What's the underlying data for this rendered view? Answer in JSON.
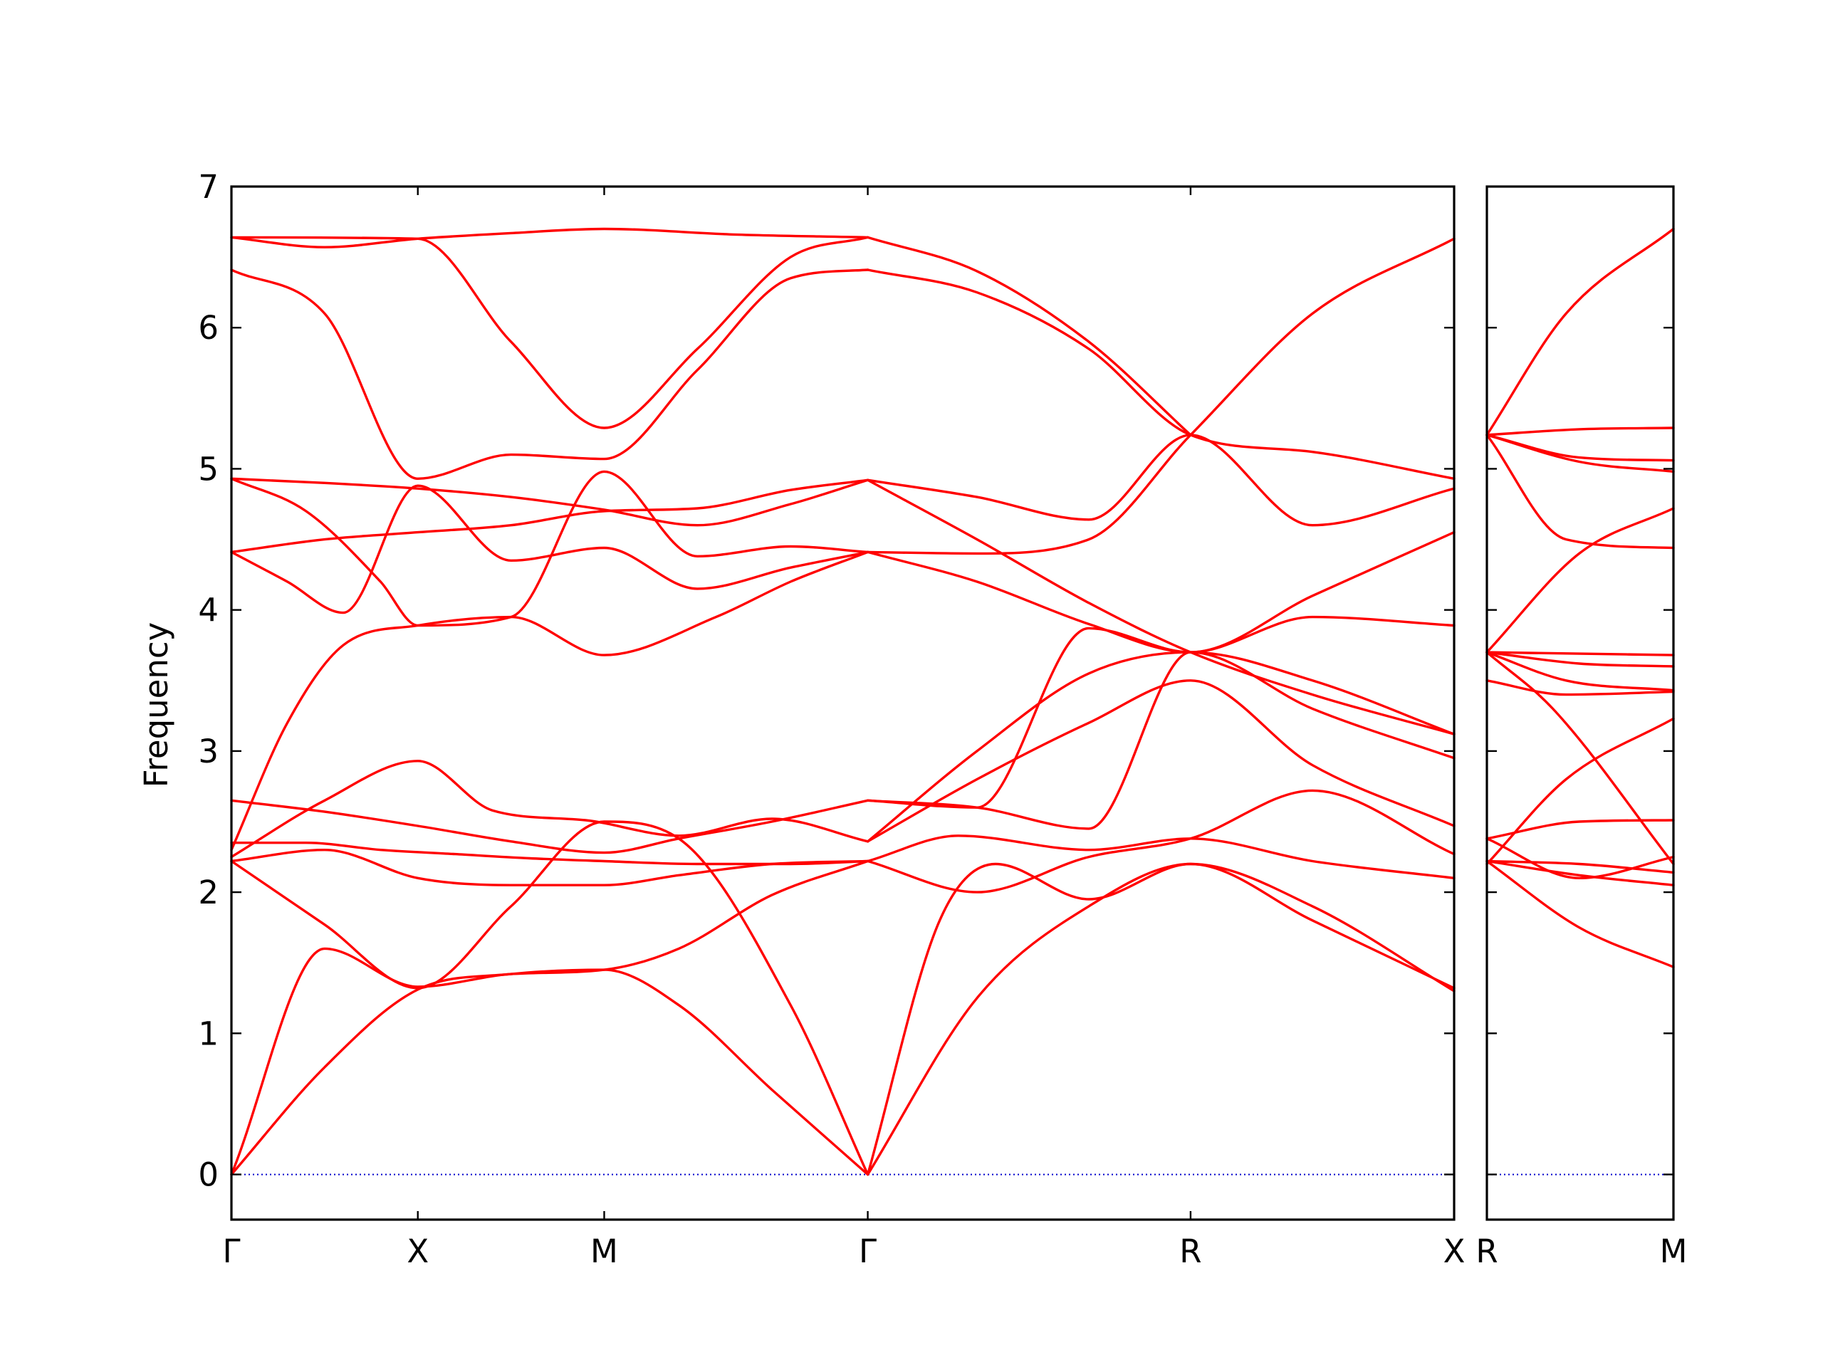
{
  "colors": {
    "band": "#ff0000",
    "zero_line": "#0000cc",
    "axes": "#000000",
    "background": "#ffffff"
  },
  "chart_data": {
    "type": "line",
    "title": "",
    "xlabel": "",
    "ylabel": "Frequency",
    "ylim": [
      -0.32,
      7.0
    ],
    "yticks": [
      0,
      1,
      2,
      3,
      4,
      5,
      6,
      7
    ],
    "grid": false,
    "legend": "none",
    "panels": [
      {
        "name": "main",
        "path_labels": [
          "Γ",
          "X",
          "M",
          "Γ",
          "R",
          "X"
        ],
        "path_positions": [
          0,
          0.5,
          1.0,
          1.707,
          2.573,
          3.28
        ],
        "xlim": [
          0,
          3.28
        ],
        "zero_line": true,
        "series": [
          {
            "x": [
              0,
              0.25,
              0.5,
              0.75,
              1.0,
              1.2,
              1.45,
              1.707
            ],
            "y": [
              0,
              0.76,
              1.31,
              1.42,
              1.45,
              1.2,
              0.6,
              0
            ]
          },
          {
            "x": [
              0,
              0.25,
              0.5,
              0.75,
              1.0,
              1.2,
              1.45,
              1.707
            ],
            "y": [
              0,
              1.6,
              1.33,
              1.42,
              1.45,
              1.6,
              1.98,
              2.22
            ]
          },
          {
            "x": [
              0,
              0.25,
              0.5,
              0.75,
              1.0,
              1.2,
              1.5,
              1.707
            ],
            "y": [
              2.22,
              1.77,
              1.32,
              1.9,
              2.5,
              2.38,
              1.2,
              0
            ]
          },
          {
            "x": [
              0,
              0.25,
              0.5,
              0.7,
              0.95,
              1.2,
              1.45,
              1.707
            ],
            "y": [
              2.25,
              2.65,
              2.93,
              2.58,
              2.51,
              2.4,
              2.52,
              2.36
            ]
          },
          {
            "x": [
              0,
              0.2,
              0.4,
              0.6,
              0.8,
              1.0,
              1.25,
              1.5,
              1.707
            ],
            "y": [
              2.35,
              2.35,
              2.3,
              2.27,
              2.24,
              2.22,
              2.2,
              2.2,
              2.22
            ]
          },
          {
            "x": [
              0,
              0.25,
              0.5,
              0.75,
              1.0,
              1.2,
              1.45,
              1.707
            ],
            "y": [
              2.65,
              2.57,
              2.47,
              2.36,
              2.28,
              2.38,
              2.5,
              2.65
            ]
          },
          {
            "x": [
              0,
              0.25,
              0.5,
              0.75,
              1.0,
              1.2,
              1.45,
              1.707
            ],
            "y": [
              2.22,
              2.3,
              2.1,
              2.05,
              2.05,
              2.12,
              2.2,
              2.22
            ]
          },
          {
            "x": [
              0,
              0.15,
              0.3,
              0.5,
              0.75,
              1.0,
              1.3,
              1.5,
              1.707
            ],
            "y": [
              2.3,
              3.2,
              3.75,
              3.89,
              3.95,
              3.68,
              3.95,
              4.2,
              4.41
            ]
          },
          {
            "x": [
              0,
              0.15,
              0.3,
              0.5,
              0.75,
              1.0,
              1.25,
              1.5,
              1.707
            ],
            "y": [
              4.41,
              4.2,
              3.98,
              4.88,
              4.35,
              4.44,
              4.15,
              4.3,
              4.41
            ]
          },
          {
            "x": [
              0,
              0.25,
              0.5,
              0.75,
              1.0,
              1.25,
              1.5,
              1.707
            ],
            "y": [
              4.41,
              4.5,
              4.55,
              4.6,
              4.7,
              4.72,
              4.85,
              4.92
            ]
          },
          {
            "x": [
              0,
              0.25,
              0.5,
              0.75,
              1.0,
              1.25,
              1.5,
              1.707
            ],
            "y": [
              4.93,
              4.9,
              4.86,
              4.8,
              4.71,
              4.6,
              4.75,
              4.92
            ]
          },
          {
            "x": [
              0,
              0.2,
              0.4,
              0.5,
              0.75,
              1.0,
              1.25,
              1.5,
              1.707
            ],
            "y": [
              4.93,
              4.7,
              4.2,
              3.89,
              3.95,
              4.98,
              4.38,
              4.45,
              4.41
            ]
          },
          {
            "x": [
              0,
              0.25,
              0.5,
              0.75,
              1.0,
              1.25,
              1.5,
              1.707
            ],
            "y": [
              6.41,
              6.1,
              4.93,
              5.1,
              5.07,
              5.7,
              6.35,
              6.41
            ]
          },
          {
            "x": [
              0,
              0.5,
              0.75,
              1.0,
              1.25,
              1.5,
              1.707
            ],
            "y": [
              6.64,
              6.63,
              5.9,
              5.29,
              5.85,
              6.5,
              6.64
            ]
          },
          {
            "x": [
              0,
              0.25,
              0.5,
              0.75,
              1.0,
              1.35,
              1.707
            ],
            "y": [
              6.64,
              6.57,
              6.63,
              6.67,
              6.7,
              6.66,
              6.64
            ]
          },
          {
            "x": [
              1.707,
              2.0,
              2.3,
              2.573,
              2.9,
              3.28
            ],
            "y": [
              0,
              1.25,
              1.9,
              2.2,
              1.8,
              1.32
            ]
          },
          {
            "x": [
              1.707,
              1.9,
              2.05,
              2.3,
              2.573,
              2.9,
              3.28
            ],
            "y": [
              0,
              1.8,
              2.2,
              1.95,
              2.2,
              1.9,
              1.3
            ]
          },
          {
            "x": [
              1.707,
              2.0,
              2.3,
              2.573,
              2.9,
              3.28
            ],
            "y": [
              2.22,
              2.0,
              2.25,
              2.38,
              2.72,
              2.27
            ]
          },
          {
            "x": [
              1.707,
              1.95,
              2.3,
              2.573,
              2.9,
              3.28
            ],
            "y": [
              2.22,
              2.4,
              2.3,
              2.38,
              2.22,
              2.1
            ]
          },
          {
            "x": [
              1.707,
              2.0,
              2.3,
              2.573,
              2.9,
              3.28
            ],
            "y": [
              2.36,
              2.8,
              3.2,
              3.5,
              2.9,
              2.47
            ]
          },
          {
            "x": [
              1.707,
              2.0,
              2.3,
              2.573,
              2.9,
              3.28
            ],
            "y": [
              2.65,
              2.6,
              2.45,
              3.7,
              3.3,
              2.95
            ]
          },
          {
            "x": [
              1.707,
              2.0,
              2.3,
              2.573,
              2.9,
              3.28
            ],
            "y": [
              2.65,
              2.6,
              3.87,
              3.7,
              3.95,
              3.89
            ]
          },
          {
            "x": [
              1.707,
              2.0,
              2.3,
              2.573,
              2.9,
              3.28
            ],
            "y": [
              2.36,
              3.0,
              3.55,
              3.7,
              3.5,
              3.12
            ]
          },
          {
            "x": [
              1.707,
              2.0,
              2.3,
              2.573,
              2.9,
              3.28
            ],
            "y": [
              4.41,
              4.4,
              4.5,
              5.24,
              6.1,
              6.63
            ]
          },
          {
            "x": [
              1.707,
              2.0,
              2.3,
              2.573,
              2.9,
              3.28
            ],
            "y": [
              4.41,
              4.2,
              3.9,
              3.7,
              4.1,
              4.55
            ]
          },
          {
            "x": [
              1.707,
              2.0,
              2.3,
              2.573,
              2.9,
              3.28
            ],
            "y": [
              4.92,
              4.8,
              4.64,
              5.24,
              4.6,
              4.86
            ]
          },
          {
            "x": [
              1.707,
              2.0,
              2.3,
              2.573,
              2.9,
              3.28
            ],
            "y": [
              4.92,
              4.5,
              4.05,
              3.7,
              3.4,
              3.12
            ]
          },
          {
            "x": [
              1.707,
              2.0,
              2.3,
              2.573,
              2.9,
              3.28
            ],
            "y": [
              6.41,
              6.25,
              5.85,
              5.24,
              5.12,
              4.93
            ]
          },
          {
            "x": [
              1.707,
              2.0,
              2.3,
              2.573
            ],
            "y": [
              6.64,
              6.4,
              5.9,
              5.24
            ]
          }
        ]
      },
      {
        "name": "side",
        "path_labels": [
          "R",
          "M"
        ],
        "path_positions": [
          0,
          0.707
        ],
        "xlim": [
          0,
          0.707
        ],
        "zero_line": true,
        "series": [
          {
            "x": [
              0,
              0.3,
              0.707
            ],
            "y": [
              5.24,
              6.1,
              6.7
            ]
          },
          {
            "x": [
              0,
              0.35,
              0.707
            ],
            "y": [
              5.24,
              5.28,
              5.29
            ]
          },
          {
            "x": [
              0,
              0.35,
              0.707
            ],
            "y": [
              5.24,
              5.08,
              5.06
            ]
          },
          {
            "x": [
              0,
              0.35,
              0.707
            ],
            "y": [
              5.24,
              5.05,
              4.98
            ]
          },
          {
            "x": [
              0,
              0.3,
              0.707
            ],
            "y": [
              5.24,
              4.5,
              4.44
            ]
          },
          {
            "x": [
              0,
              0.35,
              0.707
            ],
            "y": [
              3.7,
              4.4,
              4.72
            ]
          },
          {
            "x": [
              0,
              0.35,
              0.707
            ],
            "y": [
              3.7,
              3.69,
              3.68
            ]
          },
          {
            "x": [
              0,
              0.35,
              0.707
            ],
            "y": [
              3.7,
              3.62,
              3.6
            ]
          },
          {
            "x": [
              0,
              0.3,
              0.707
            ],
            "y": [
              3.7,
              3.5,
              3.43
            ]
          },
          {
            "x": [
              0,
              0.3,
              0.707
            ],
            "y": [
              3.5,
              3.4,
              3.42
            ]
          },
          {
            "x": [
              0,
              0.3,
              0.707
            ],
            "y": [
              2.2,
              2.8,
              3.23
            ]
          },
          {
            "x": [
              0,
              0.25,
              0.707
            ],
            "y": [
              3.7,
              3.3,
              2.2
            ]
          },
          {
            "x": [
              0,
              0.35,
              0.707
            ],
            "y": [
              2.38,
              2.5,
              2.51
            ]
          },
          {
            "x": [
              0,
              0.35,
              0.707
            ],
            "y": [
              2.38,
              2.1,
              2.25
            ]
          },
          {
            "x": [
              0,
              0.35,
              0.707
            ],
            "y": [
              2.22,
              2.2,
              2.14
            ]
          },
          {
            "x": [
              0,
              0.35,
              0.707
            ],
            "y": [
              2.22,
              2.12,
              2.05
            ]
          },
          {
            "x": [
              0,
              0.35,
              0.707
            ],
            "y": [
              2.22,
              1.75,
              1.47
            ]
          }
        ]
      }
    ]
  }
}
